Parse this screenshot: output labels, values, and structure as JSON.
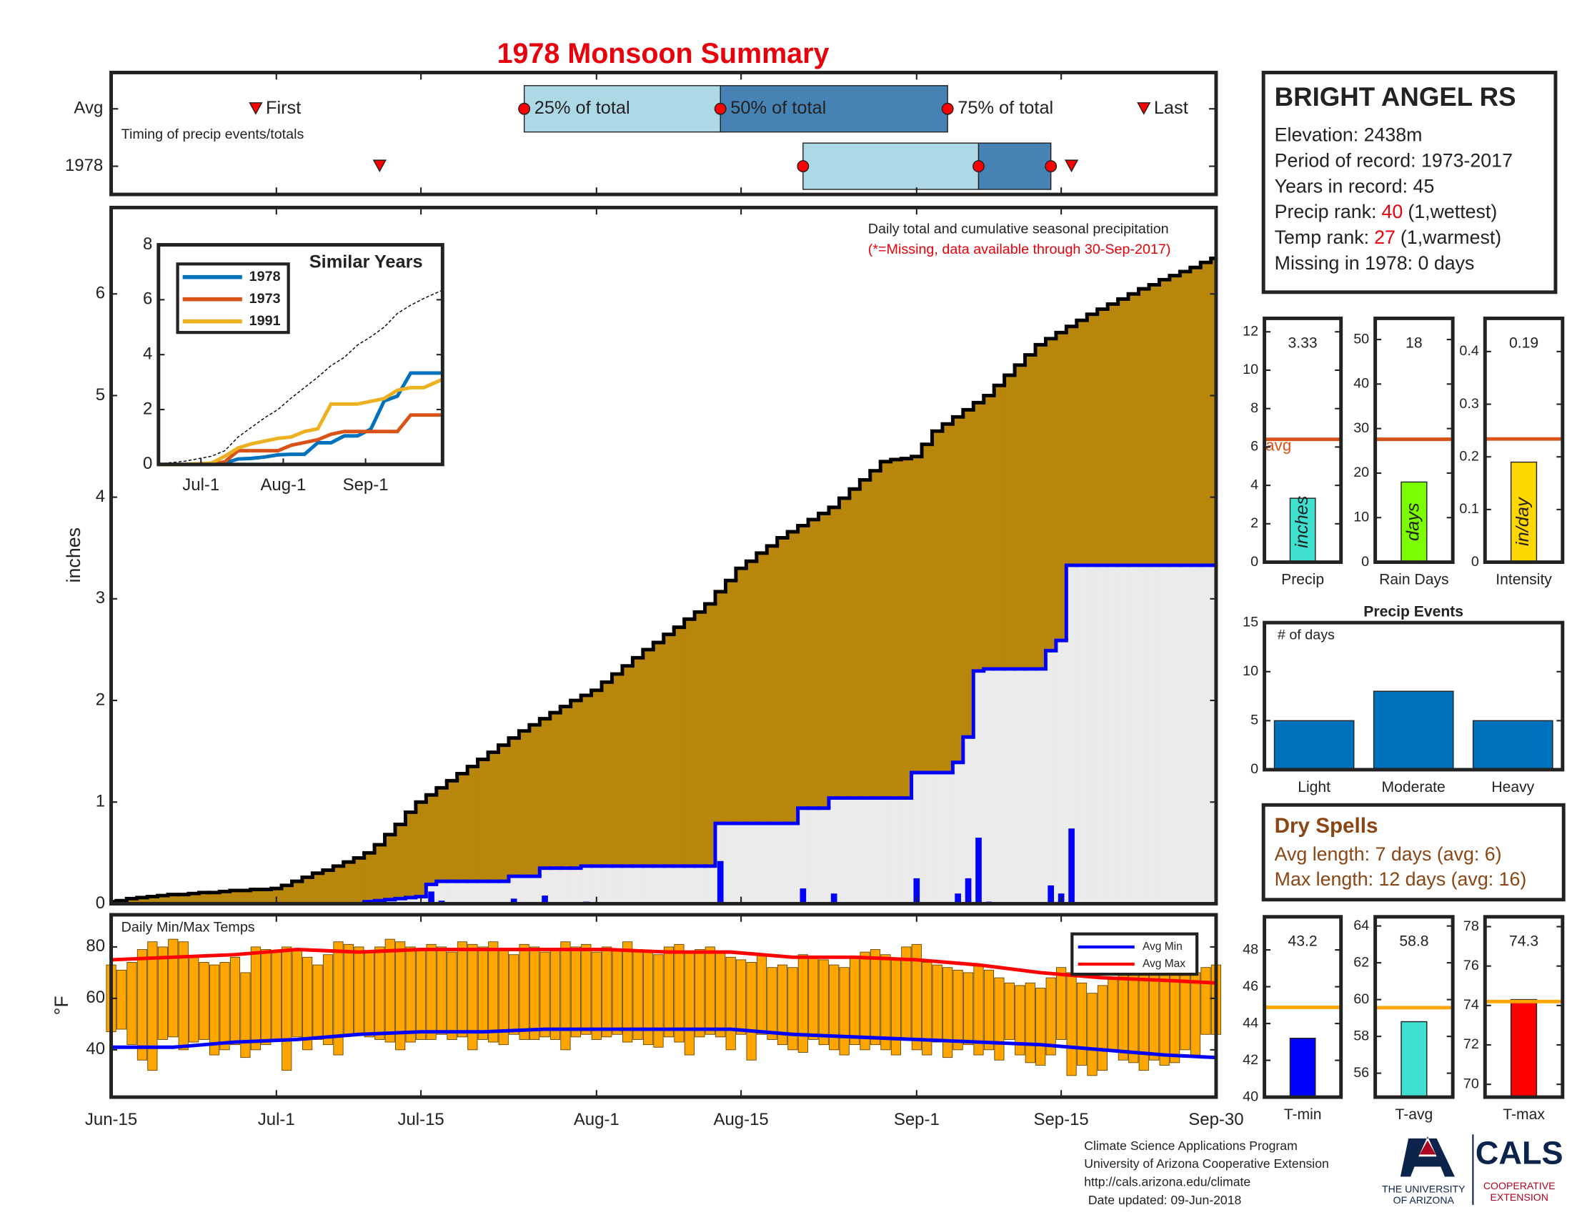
{
  "title": "1978 Monsoon Summary",
  "chart_data": [
    {
      "type": "timing",
      "annotation": "Timing of precip events/totals",
      "xlim": [
        0,
        107
      ],
      "point_labels": [
        "First",
        "25% of total",
        "50% of total",
        "75% of total",
        "Last"
      ],
      "colors": [
        "#add8e6",
        "#4682b4"
      ],
      "marker_color": "#ff0000",
      "series": [
        {
          "name": "Avg",
          "values": [
            14,
            40,
            59,
            81,
            100
          ]
        },
        {
          "name": "1978",
          "values": [
            26,
            67,
            84,
            91,
            93
          ]
        }
      ]
    },
    {
      "type": "area",
      "annotation": "Daily total and cumulative seasonal precipitation",
      "note": "(*=Missing, data available through 30-Sep-2017)",
      "ylabel": "inches",
      "xlim": [
        0,
        107
      ],
      "ylim": [
        0,
        6.85
      ],
      "yticks": [
        0,
        1,
        2,
        3,
        4,
        5,
        6
      ],
      "series": [
        {
          "style": "area",
          "color": "#b8860b",
          "line_color": "#000000",
          "values": [
            0.02,
            0.03,
            0.05,
            0.06,
            0.07,
            0.08,
            0.09,
            0.09,
            0.1,
            0.11,
            0.11,
            0.12,
            0.13,
            0.13,
            0.14,
            0.14,
            0.15,
            0.18,
            0.22,
            0.26,
            0.3,
            0.33,
            0.37,
            0.41,
            0.45,
            0.5,
            0.58,
            0.68,
            0.78,
            0.9,
            1.0,
            1.07,
            1.14,
            1.21,
            1.28,
            1.35,
            1.42,
            1.49,
            1.56,
            1.63,
            1.7,
            1.76,
            1.82,
            1.88,
            1.94,
            2.0,
            2.05,
            2.1,
            2.18,
            2.26,
            2.34,
            2.42,
            2.5,
            2.57,
            2.65,
            2.72,
            2.8,
            2.87,
            2.95,
            3.07,
            3.18,
            3.3,
            3.37,
            3.45,
            3.52,
            3.6,
            3.66,
            3.72,
            3.78,
            3.84,
            3.9,
            3.99,
            4.08,
            4.17,
            4.26,
            4.35,
            4.37,
            4.38,
            4.4,
            4.52,
            4.65,
            4.72,
            4.79,
            4.86,
            4.93,
            5.0,
            5.1,
            5.2,
            5.3,
            5.4,
            5.5,
            5.56,
            5.62,
            5.68,
            5.74,
            5.8,
            5.85,
            5.9,
            5.95,
            6.0,
            6.05,
            6.09,
            6.14,
            6.18,
            6.22,
            6.26,
            6.31,
            6.35
          ]
        },
        {
          "style": "step",
          "color": "#0000ff",
          "fill": "#ebebeb",
          "values": [
            0,
            0,
            0,
            0,
            0,
            0,
            0,
            0,
            0,
            0,
            0,
            0,
            0,
            0,
            0,
            0,
            0,
            0,
            0,
            0,
            0,
            0,
            0,
            0,
            0,
            0.02,
            0.03,
            0.04,
            0.05,
            0.06,
            0.07,
            0.19,
            0.22,
            0.22,
            0.22,
            0.22,
            0.22,
            0.22,
            0.22,
            0.27,
            0.27,
            0.27,
            0.35,
            0.35,
            0.35,
            0.35,
            0.37,
            0.37,
            0.37,
            0.37,
            0.37,
            0.37,
            0.37,
            0.37,
            0.37,
            0.37,
            0.37,
            0.37,
            0.37,
            0.79,
            0.79,
            0.79,
            0.79,
            0.79,
            0.79,
            0.79,
            0.79,
            0.94,
            0.94,
            0.94,
            1.04,
            1.04,
            1.04,
            1.04,
            1.04,
            1.04,
            1.04,
            1.04,
            1.29,
            1.29,
            1.29,
            1.29,
            1.39,
            1.64,
            2.29,
            2.31,
            2.31,
            2.31,
            2.31,
            2.31,
            2.31,
            2.49,
            2.59,
            3.33,
            3.33,
            3.33,
            3.33,
            3.33,
            3.33,
            3.33,
            3.33,
            3.33,
            3.33,
            3.33,
            3.33,
            3.33,
            3.33,
            3.33
          ]
        },
        {
          "style": "bar",
          "color": "#0000ff",
          "values": [
            0,
            0,
            0,
            0,
            0,
            0,
            0,
            0,
            0,
            0,
            0,
            0,
            0,
            0,
            0,
            0,
            0,
            0,
            0,
            0,
            0,
            0,
            0,
            0,
            0,
            0.02,
            0.01,
            0.01,
            0.01,
            0.01,
            0.01,
            0.12,
            0.03,
            0,
            0,
            0,
            0,
            0,
            0,
            0.05,
            0,
            0,
            0.08,
            0,
            0,
            0,
            0.02,
            0,
            0,
            0,
            0,
            0,
            0,
            0,
            0,
            0,
            0,
            0,
            0,
            0.42,
            0,
            0,
            0,
            0,
            0,
            0,
            0,
            0.15,
            0,
            0,
            0.1,
            0,
            0,
            0,
            0,
            0,
            0,
            0,
            0.25,
            0,
            0,
            0,
            0.1,
            0.25,
            0.65,
            0.02,
            0,
            0,
            0,
            0,
            0,
            0.18,
            0.1,
            0.74,
            0,
            0,
            0,
            0,
            0,
            0,
            0,
            0,
            0,
            0,
            0,
            0,
            0,
            0
          ]
        }
      ]
    },
    {
      "type": "line",
      "title": "Similar Years",
      "xlim": [
        0,
        107
      ],
      "xticks": [
        {
          "value": 16,
          "label": "Jul-1"
        },
        {
          "value": 47,
          "label": "Aug-1"
        },
        {
          "value": 78,
          "label": "Sep-1"
        }
      ],
      "ylim": [
        0,
        8
      ],
      "yticks": [
        0,
        2,
        4,
        6,
        8
      ],
      "x": [
        0,
        10,
        20,
        25,
        30,
        35,
        40,
        45,
        50,
        55,
        60,
        65,
        70,
        75,
        80,
        85,
        90,
        95,
        100,
        107
      ],
      "series": [
        {
          "name": "1978",
          "color": "#0072bd",
          "values": [
            0,
            0,
            0,
            0.05,
            0.2,
            0.22,
            0.27,
            0.35,
            0.37,
            0.37,
            0.79,
            0.79,
            1.04,
            1.04,
            1.29,
            2.31,
            2.49,
            3.33,
            3.33,
            3.33
          ]
        },
        {
          "name": "1973",
          "color": "#d95319",
          "values": [
            0,
            0,
            0,
            0.1,
            0.5,
            0.5,
            0.5,
            0.5,
            0.7,
            0.8,
            0.9,
            1.1,
            1.2,
            1.2,
            1.2,
            1.2,
            1.2,
            1.8,
            1.8,
            1.8
          ]
        },
        {
          "name": "1991",
          "color": "#edb120",
          "values": [
            0,
            0,
            0.05,
            0.3,
            0.6,
            0.75,
            0.85,
            0.95,
            1.0,
            1.2,
            1.3,
            2.2,
            2.2,
            2.2,
            2.3,
            2.4,
            2.7,
            2.8,
            2.8,
            3.1
          ]
        },
        {
          "color": "#000000",
          "dash": true,
          "values": [
            0.02,
            0.12,
            0.3,
            0.5,
            1.0,
            1.35,
            1.7,
            2.0,
            2.42,
            2.8,
            3.18,
            3.6,
            3.9,
            4.35,
            4.65,
            5.0,
            5.5,
            5.8,
            6.05,
            6.35
          ]
        }
      ]
    },
    {
      "type": "bar",
      "categories": [
        "Precip"
      ],
      "values": [
        3.33
      ],
      "data_labels": true,
      "unit_label": "inches",
      "color": "#40e0d0",
      "ylim": [
        0,
        12.7
      ],
      "yticks": [
        0,
        2,
        4,
        6,
        8,
        10,
        12
      ],
      "avg": 6.4,
      "avg_label": "avg",
      "avg_color": "#d95319"
    },
    {
      "type": "bar",
      "categories": [
        "Rain Days"
      ],
      "values": [
        18
      ],
      "data_labels": true,
      "unit_label": "days",
      "color": "#7cfc00",
      "ylim": [
        0,
        54.75
      ],
      "yticks": [
        0,
        10,
        20,
        30,
        40,
        50
      ],
      "avg": 27.6,
      "avg_color": "#d95319"
    },
    {
      "type": "bar",
      "categories": [
        "Intensity"
      ],
      "values": [
        0.19
      ],
      "data_labels": true,
      "unit_label": "in/day",
      "color": "#ffd700",
      "ylim": [
        0,
        0.463
      ],
      "yticks": [
        0,
        0.1,
        0.2,
        0.3,
        0.4
      ],
      "avg": 0.234,
      "avg_color": "#d95319"
    },
    {
      "type": "bar",
      "title": "Precip Events",
      "annotation": "# of days",
      "categories": [
        "Light",
        "Moderate",
        "Heavy"
      ],
      "values": [
        5,
        8,
        5
      ],
      "color": "#0072bd",
      "ylim": [
        0,
        15
      ],
      "yticks": [
        0,
        5,
        10,
        15
      ]
    },
    {
      "type": "bar",
      "categories": [
        "T-min"
      ],
      "values": [
        43.2
      ],
      "data_labels": true,
      "color": "#0000ff",
      "ylim": [
        40,
        49.8
      ],
      "yticks": [
        40,
        42,
        44,
        46,
        48
      ],
      "avg": 44.88,
      "avg_color": "#ffa500"
    },
    {
      "type": "bar",
      "categories": [
        "T-avg"
      ],
      "values": [
        58.8
      ],
      "data_labels": true,
      "color": "#40e0d0",
      "ylim": [
        54.7,
        64.5
      ],
      "yticks": [
        56,
        58,
        60,
        62,
        64
      ],
      "avg": 59.56,
      "avg_color": "#ffa500"
    },
    {
      "type": "bar",
      "categories": [
        "T-max"
      ],
      "values": [
        74.3
      ],
      "data_labels": true,
      "color": "#ff0000",
      "ylim": [
        69.35,
        78.5
      ],
      "yticks": [
        70,
        72,
        74,
        76,
        78
      ],
      "avg": 74.2,
      "avg_color": "#ffa500"
    },
    {
      "type": "range",
      "title": "Daily Min/Max Temps",
      "ylabel": "°F",
      "color": "#ffa500",
      "xlim": [
        0,
        107
      ],
      "xticks": [
        {
          "value": 0,
          "label": "Jun-15"
        },
        {
          "value": 16,
          "label": "Jul-1"
        },
        {
          "value": 30,
          "label": "Jul-15"
        },
        {
          "value": 47,
          "label": "Aug-1"
        },
        {
          "value": 61,
          "label": "Aug-15"
        },
        {
          "value": 78,
          "label": "Sep-1"
        },
        {
          "value": 92,
          "label": "Sep-15"
        },
        {
          "value": 107,
          "label": "Sep-30"
        }
      ],
      "ylim": [
        21.6,
        92.5
      ],
      "yticks": [
        40,
        60,
        80
      ],
      "legend": "upper right",
      "max": [
        73,
        71,
        74,
        79,
        82,
        80,
        83,
        82,
        76,
        74,
        73,
        74,
        76,
        70,
        80,
        79,
        78,
        80,
        79,
        76,
        73,
        77,
        82,
        81,
        80,
        78,
        80,
        83,
        82,
        80,
        79,
        81,
        80,
        78,
        82,
        81,
        80,
        82,
        79,
        77,
        81,
        80,
        78,
        79,
        82,
        80,
        81,
        78,
        80,
        79,
        82,
        79,
        78,
        77,
        80,
        81,
        78,
        79,
        80,
        78,
        76,
        75,
        74,
        77,
        72,
        73,
        72,
        77,
        76,
        75,
        73,
        72,
        76,
        78,
        79,
        77,
        75,
        80,
        81,
        74,
        73,
        72,
        71,
        70,
        73,
        71,
        68,
        66,
        65,
        66,
        64,
        68,
        72,
        70,
        66,
        62,
        65,
        68,
        69,
        70,
        70,
        71,
        74,
        72,
        69,
        70,
        72,
        73
      ],
      "min": [
        47,
        48,
        42,
        36,
        32,
        44,
        45,
        40,
        43,
        44,
        38,
        40,
        42,
        37,
        40,
        42,
        44,
        32,
        45,
        40,
        44,
        42,
        38,
        46,
        46,
        45,
        44,
        43,
        40,
        43,
        44,
        44,
        46,
        44,
        45,
        40,
        44,
        43,
        42,
        46,
        44,
        44,
        45,
        44,
        40,
        45,
        46,
        44,
        45,
        46,
        43,
        44,
        42,
        41,
        45,
        43,
        38,
        45,
        46,
        45,
        40,
        46,
        36,
        46,
        44,
        42,
        40,
        39,
        44,
        42,
        40,
        38,
        42,
        40,
        42,
        40,
        38,
        44,
        40,
        38,
        43,
        37,
        40,
        42,
        38,
        40,
        36,
        44,
        38,
        35,
        34,
        38,
        44,
        30,
        34,
        30,
        32,
        40,
        36,
        35,
        32,
        36,
        34,
        35,
        40,
        38,
        46,
        46
      ],
      "x": [
        0,
        6,
        12,
        18,
        24,
        30,
        36,
        42,
        48,
        54,
        60,
        66,
        72,
        78,
        84,
        90,
        96,
        102,
        107
      ],
      "series": [
        {
          "name": "Avg Min",
          "color": "#0000ff",
          "values": [
            41,
            41,
            43,
            44,
            46,
            47,
            47,
            48,
            48,
            48,
            48,
            46,
            45,
            44,
            43,
            42,
            40,
            38,
            37
          ]
        },
        {
          "name": "Avg Max",
          "color": "#ff0000",
          "values": [
            75,
            76,
            77,
            79,
            78,
            79,
            79,
            79,
            79,
            78,
            78,
            76,
            76,
            75,
            73,
            70,
            68,
            67,
            66
          ]
        }
      ]
    }
  ],
  "station": {
    "name": "BRIGHT ANGEL RS",
    "lines": [
      "Elevation: 2438m",
      "Period of record: 1973-2017",
      "Years in record: 45"
    ],
    "ranks": [
      {
        "label": "Precip rank:",
        "value": 40,
        "note": "(1,wettest)"
      },
      {
        "label": "Temp rank:",
        "value": 27,
        "note": "(1,warmest)"
      }
    ],
    "missing": "Missing in 1978: 0 days"
  },
  "dry_spells": {
    "title": "Dry Spells",
    "lines": [
      "Avg length: 7 days (avg: 6)",
      "Max length: 12 days (avg: 16)"
    ]
  },
  "footer": {
    "lines": [
      "Climate Science Applications Program",
      "University of Arizona Cooperative Extension",
      "http://cals.arizona.edu/climate",
      "Date updated: 09-Jun-2018"
    ],
    "university": [
      "THE UNIVERSITY",
      "OF ARIZONA"
    ],
    "cals": "CALS",
    "extension": [
      "COOPERATIVE",
      "EXTENSION"
    ]
  }
}
